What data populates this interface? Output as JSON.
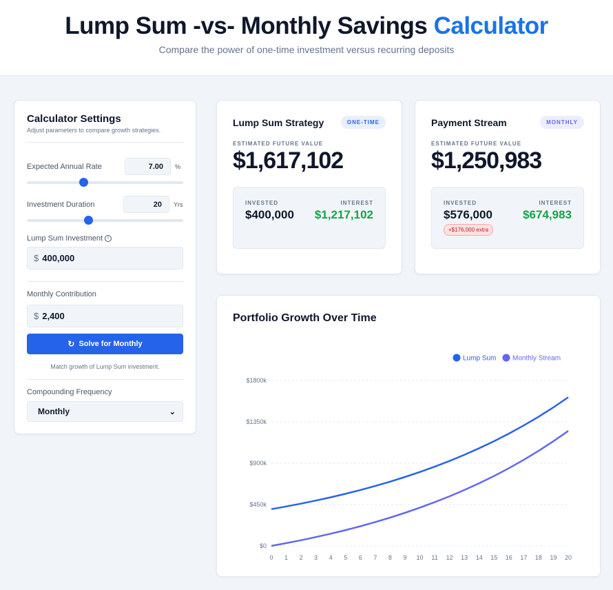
{
  "header": {
    "title_main": "Lump Sum -vs- Monthly Savings",
    "title_accent": "Calculator",
    "subtitle": "Compare the power of one-time investment versus recurring deposits",
    "accent_color": "#1a73e8"
  },
  "settings": {
    "title": "Calculator Settings",
    "subtitle": "Adjust parameters to compare growth strategies.",
    "rate": {
      "label": "Expected Annual Rate",
      "value": "7.00",
      "unit": "%",
      "slider_fraction": 0.36
    },
    "duration": {
      "label": "Investment Duration",
      "value": "20",
      "unit": "Yrs",
      "slider_fraction": 0.39
    },
    "lump": {
      "label": "Lump Sum Investment",
      "currency": "$",
      "value": "400,000",
      "icon": "info-icon"
    },
    "monthly": {
      "label": "Monthly Contribution",
      "currency": "$",
      "value": "2,400"
    },
    "solve_button": "Solve for Monthly",
    "solve_icon": "refresh-icon",
    "hint": "Match growth of Lump Sum investment.",
    "frequency": {
      "label": "Compounding Frequency",
      "value": "Monthly"
    }
  },
  "lump_card": {
    "title": "Lump Sum Strategy",
    "badge": "ONE-TIME",
    "est_label": "ESTIMATED FUTURE VALUE",
    "value": "$1,617,102",
    "invested_label": "INVESTED",
    "invested": "$400,000",
    "interest_label": "INTEREST",
    "interest": "$1,217,102"
  },
  "monthly_card": {
    "title": "Payment Stream",
    "badge": "MONTHLY",
    "est_label": "ESTIMATED FUTURE VALUE",
    "value": "$1,250,983",
    "invested_label": "INVESTED",
    "invested": "$576,000",
    "extra": "+$176,000 extra",
    "interest_label": "INTEREST",
    "interest": "$674,983"
  },
  "chart_data": {
    "type": "line",
    "title": "Portfolio Growth Over Time",
    "ylim": [
      0,
      1800000
    ],
    "yticks": [
      0,
      450000,
      900000,
      1350000,
      1800000
    ],
    "ytick_labels": [
      "$0",
      "$450k",
      "$900k",
      "$1350k",
      "$1800k"
    ],
    "x": [
      0,
      1,
      2,
      3,
      4,
      5,
      6,
      7,
      8,
      9,
      10,
      11,
      12,
      13,
      14,
      15,
      16,
      17,
      18,
      19,
      20
    ],
    "grid": "horizontal dashed",
    "legend": "top-right",
    "series": [
      {
        "name": "Lump Sum",
        "color": "#2563eb",
        "values": [
          400000,
          428916,
          459924,
          493172,
          528824,
          567052,
          608044,
          652000,
          699132,
          749672,
          803864,
          861976,
          924288,
          991104,
          1062752,
          1139580,
          1221960,
          1310296,
          1405016,
          1506584,
          1617102
        ]
      },
      {
        "name": "Monthly Stream",
        "color": "#6366f1",
        "values": [
          0,
          29742,
          61636,
          95833,
          132512,
          171832,
          214000,
          259203,
          307683,
          359667,
          415404,
          475179,
          539269,
          607996,
          681693,
          760717,
          845451,
          936313,
          1033740,
          1138211,
          1250983
        ]
      }
    ]
  }
}
